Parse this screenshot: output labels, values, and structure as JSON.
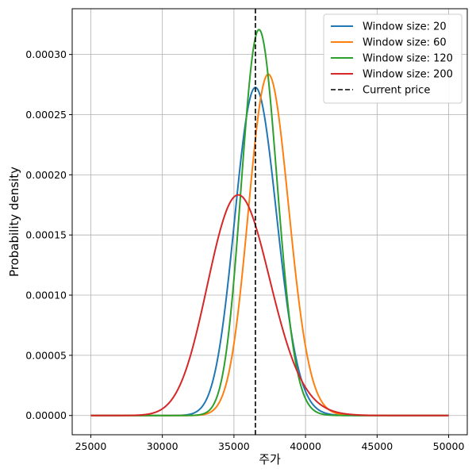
{
  "chart_data": {
    "type": "line",
    "title": "",
    "xlabel": "주가",
    "ylabel": "Probability density",
    "xlim": [
      23700,
      51300
    ],
    "ylim": [
      -1.6e-05,
      0.000338
    ],
    "xticks": [
      25000,
      30000,
      35000,
      40000,
      45000,
      50000
    ],
    "xtick_labels": [
      "25000",
      "30000",
      "35000",
      "40000",
      "45000",
      "50000"
    ],
    "yticks": [
      0,
      5e-05,
      0.0001,
      0.00015,
      0.0002,
      0.00025,
      0.0003
    ],
    "ytick_labels": [
      "0.00000",
      "0.00005",
      "0.00010",
      "0.00015",
      "0.00020",
      "0.00025",
      "0.00030"
    ],
    "grid": true,
    "legend_position": "top-right",
    "x_domain": [
      25000,
      50000
    ],
    "series": [
      {
        "name": "Window size: 20",
        "color": "#1f77b4",
        "style": "solid",
        "kind": "lognormal",
        "peak_x": 36500,
        "peak_y": 0.000273
      },
      {
        "name": "Window size: 60",
        "color": "#ff7f0e",
        "style": "solid",
        "kind": "lognormal",
        "peak_x": 37400,
        "peak_y": 0.000284
      },
      {
        "name": "Window size: 120",
        "color": "#2ca02c",
        "style": "solid",
        "kind": "lognormal",
        "peak_x": 36750,
        "peak_y": 0.000321
      },
      {
        "name": "Window size: 200",
        "color": "#d62728",
        "style": "solid",
        "kind": "lognormal",
        "peak_x": 35300,
        "peak_y": 0.000184
      }
    ],
    "vlines": [
      {
        "name": "Current price",
        "x": 36500,
        "color": "#000000",
        "style": "dashed"
      }
    ]
  }
}
